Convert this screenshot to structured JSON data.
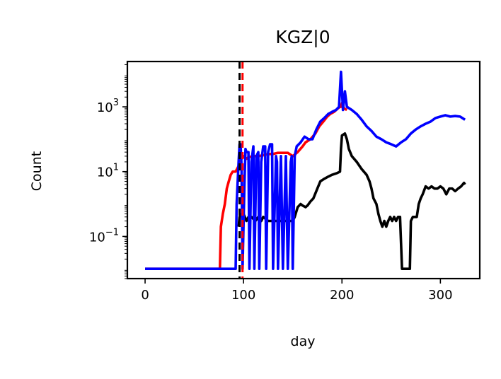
{
  "chart_data": {
    "type": "line",
    "title": "KGZ|0",
    "xlabel": "day",
    "ylabel": "Count",
    "x_scale": "linear",
    "y_scale": "log",
    "xlim": [
      -18,
      340
    ],
    "ylim": [
      0.005,
      25000
    ],
    "x_ticks": [
      {
        "value": 0,
        "label": "0"
      },
      {
        "value": 100,
        "label": "100"
      },
      {
        "value": 200,
        "label": "200"
      },
      {
        "value": 300,
        "label": "300"
      }
    ],
    "y_ticks": [
      {
        "value": 0.1,
        "base": "10",
        "exp": "−1"
      },
      {
        "value": 10,
        "base": "10",
        "exp": "1"
      },
      {
        "value": 1000,
        "base": "10",
        "exp": "3"
      }
    ],
    "grid": false,
    "legend": false,
    "vlines": [
      {
        "x": 96,
        "style": "dashed",
        "color": "#000000"
      },
      {
        "x": 99,
        "style": "dashed",
        "color": "#ff0000"
      }
    ],
    "series": [
      {
        "color": "#ff0000",
        "points": [
          [
            0,
            0.01
          ],
          [
            76,
            0.01
          ],
          [
            77,
            0.2
          ],
          [
            79,
            0.5
          ],
          [
            81,
            1
          ],
          [
            83,
            3
          ],
          [
            85,
            5
          ],
          [
            87,
            8
          ],
          [
            89,
            10
          ],
          [
            92,
            10
          ],
          [
            95,
            15
          ],
          [
            98,
            25
          ],
          [
            100,
            30
          ],
          [
            103,
            25
          ],
          [
            105,
            28
          ],
          [
            110,
            30
          ],
          [
            115,
            30
          ],
          [
            120,
            32
          ],
          [
            125,
            35
          ],
          [
            130,
            35
          ],
          [
            135,
            38
          ],
          [
            140,
            38
          ],
          [
            145,
            38
          ],
          [
            150,
            30
          ],
          [
            155,
            40
          ],
          [
            160,
            60
          ],
          [
            163,
            80
          ],
          [
            168,
            100
          ],
          [
            173,
            150
          ],
          [
            177,
            250
          ],
          [
            181,
            350
          ],
          [
            185,
            500
          ],
          [
            188,
            600
          ],
          [
            192,
            700
          ],
          [
            196,
            900
          ],
          [
            198,
            1000
          ],
          [
            199,
            1000
          ],
          [
            200,
            1300
          ],
          [
            202,
            900
          ],
          [
            205,
            800
          ]
        ]
      },
      {
        "color": "#000000",
        "points": [
          [
            95,
            0.2
          ],
          [
            96,
            0.4
          ],
          [
            98,
            0.5
          ],
          [
            100,
            0.5
          ],
          [
            103,
            0.3
          ],
          [
            105,
            0.4
          ],
          [
            108,
            0.4
          ],
          [
            112,
            0.3
          ],
          [
            115,
            0.4
          ],
          [
            118,
            0.3
          ],
          [
            120,
            0.4
          ],
          [
            125,
            0.3
          ],
          [
            130,
            0.3
          ],
          [
            135,
            0.3
          ],
          [
            140,
            0.3
          ],
          [
            145,
            0.3
          ],
          [
            150,
            0.3
          ],
          [
            152,
            0.4
          ],
          [
            155,
            0.8
          ],
          [
            158,
            1
          ],
          [
            160,
            0.9
          ],
          [
            163,
            0.8
          ],
          [
            165,
            0.9
          ],
          [
            168,
            1.2
          ],
          [
            171,
            1.5
          ],
          [
            175,
            3
          ],
          [
            178,
            5
          ],
          [
            182,
            6
          ],
          [
            186,
            7
          ],
          [
            190,
            8
          ],
          [
            195,
            9
          ],
          [
            198,
            10
          ],
          [
            199,
            50
          ],
          [
            200,
            130
          ],
          [
            203,
            150
          ],
          [
            205,
            100
          ],
          [
            207,
            50
          ],
          [
            210,
            30
          ],
          [
            215,
            20
          ],
          [
            220,
            12
          ],
          [
            225,
            8
          ],
          [
            228,
            5
          ],
          [
            230,
            3
          ],
          [
            232,
            1.5
          ],
          [
            235,
            1
          ],
          [
            237,
            0.5
          ],
          [
            239,
            0.3
          ],
          [
            241,
            0.2
          ],
          [
            243,
            0.3
          ],
          [
            245,
            0.2
          ],
          [
            247,
            0.3
          ],
          [
            249,
            0.4
          ],
          [
            251,
            0.3
          ],
          [
            253,
            0.4
          ],
          [
            255,
            0.3
          ],
          [
            257,
            0.4
          ],
          [
            259,
            0.4
          ],
          [
            261,
            0.01
          ],
          [
            269,
            0.01
          ],
          [
            270,
            0.3
          ],
          [
            272,
            0.4
          ],
          [
            276,
            0.4
          ],
          [
            278,
            1
          ],
          [
            280,
            1.5
          ],
          [
            282,
            2
          ],
          [
            285,
            3.5
          ],
          [
            288,
            3
          ],
          [
            291,
            3.5
          ],
          [
            294,
            3
          ],
          [
            297,
            3
          ],
          [
            300,
            3.5
          ],
          [
            303,
            3
          ],
          [
            306,
            2
          ],
          [
            309,
            3
          ],
          [
            312,
            3
          ],
          [
            315,
            2.5
          ],
          [
            318,
            3
          ],
          [
            321,
            3.5
          ],
          [
            324,
            4.5
          ],
          [
            325,
            4
          ]
        ]
      },
      {
        "color": "#0000ff",
        "points": [
          [
            0,
            0.01
          ],
          [
            92,
            0.01
          ],
          [
            93,
            1
          ],
          [
            95,
            20
          ],
          [
            96,
            70
          ],
          [
            97,
            70
          ],
          [
            98,
            15
          ],
          [
            99,
            0.01
          ],
          [
            101,
            5
          ],
          [
            102,
            50
          ],
          [
            103,
            40
          ],
          [
            105,
            40
          ],
          [
            106,
            0.01
          ],
          [
            108,
            20
          ],
          [
            110,
            60
          ],
          [
            111,
            0.01
          ],
          [
            113,
            30
          ],
          [
            115,
            40
          ],
          [
            116,
            0.01
          ],
          [
            118,
            20
          ],
          [
            120,
            60
          ],
          [
            122,
            60
          ],
          [
            123,
            0.01
          ],
          [
            125,
            40
          ],
          [
            127,
            70
          ],
          [
            129,
            70
          ],
          [
            130,
            0.01
          ],
          [
            133,
            30
          ],
          [
            134,
            20
          ],
          [
            135,
            0.01
          ],
          [
            138,
            30
          ],
          [
            140,
            0.01
          ],
          [
            143,
            30
          ],
          [
            145,
            0.01
          ],
          [
            148,
            20
          ],
          [
            149,
            30
          ],
          [
            150,
            0.01
          ],
          [
            152,
            30
          ],
          [
            154,
            60
          ],
          [
            158,
            80
          ],
          [
            162,
            120
          ],
          [
            166,
            100
          ],
          [
            170,
            100
          ],
          [
            174,
            200
          ],
          [
            178,
            350
          ],
          [
            182,
            450
          ],
          [
            186,
            600
          ],
          [
            190,
            700
          ],
          [
            194,
            800
          ],
          [
            197,
            1000
          ],
          [
            199,
            12000
          ],
          [
            201,
            800
          ],
          [
            203,
            3000
          ],
          [
            205,
            1000
          ],
          [
            210,
            800
          ],
          [
            215,
            600
          ],
          [
            220,
            400
          ],
          [
            225,
            250
          ],
          [
            230,
            180
          ],
          [
            235,
            120
          ],
          [
            240,
            100
          ],
          [
            245,
            80
          ],
          [
            250,
            70
          ],
          [
            255,
            60
          ],
          [
            260,
            80
          ],
          [
            265,
            100
          ],
          [
            270,
            150
          ],
          [
            275,
            200
          ],
          [
            280,
            250
          ],
          [
            285,
            300
          ],
          [
            290,
            350
          ],
          [
            295,
            450
          ],
          [
            300,
            500
          ],
          [
            305,
            550
          ],
          [
            310,
            500
          ],
          [
            315,
            520
          ],
          [
            320,
            500
          ],
          [
            325,
            400
          ]
        ]
      }
    ]
  }
}
